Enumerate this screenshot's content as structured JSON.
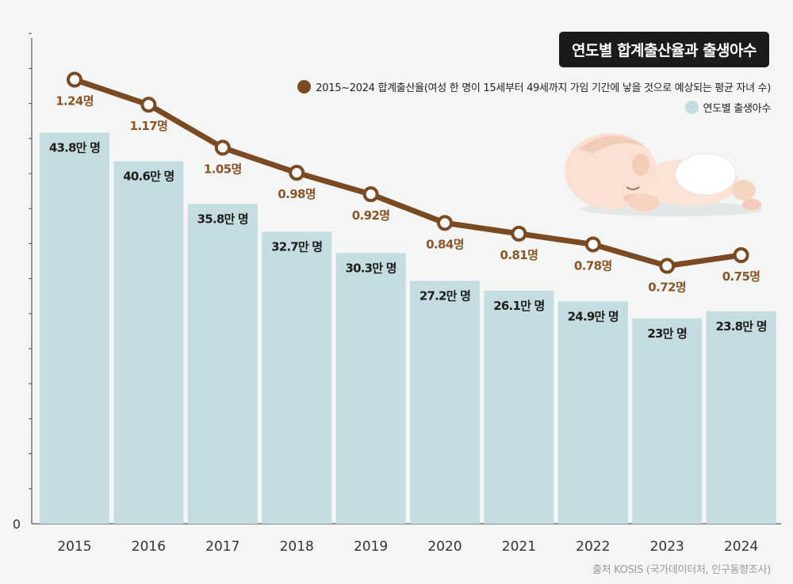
{
  "title": "연도별 합계출산율과 출생아수",
  "legend": {
    "line_label": "2015~2024 합계출산율(여성 한 명이 15세부터 49세까지 가임 기간에 낳을 것으로 예상되는 평균 자녀 수)",
    "bar_label": "연도별 출생아수"
  },
  "source": "출처 KOSIS (국가데이터처, 인구동향조사)",
  "colors": {
    "bar": "#c5dde0",
    "line": "#7a4a22",
    "line_label": "#8a5628",
    "background": "#f4f6f6",
    "axis": "#555555"
  },
  "chart_data": {
    "type": "bar+line",
    "title": "연도별 합계출산율과 출생아수",
    "categories": [
      "2015",
      "2016",
      "2017",
      "2018",
      "2019",
      "2020",
      "2021",
      "2022",
      "2023",
      "2024"
    ],
    "series": [
      {
        "name": "연도별 출생아수",
        "type": "bar",
        "unit": "만 명",
        "values": [
          43.8,
          40.6,
          35.8,
          32.7,
          30.3,
          27.2,
          26.1,
          24.9,
          23,
          23.8
        ],
        "labels": [
          "43.8만 명",
          "40.6만 명",
          "35.8만 명",
          "32.7만 명",
          "30.3만 명",
          "27.2만 명",
          "26.1만 명",
          "24.9만 명",
          "23만 명",
          "23.8만 명"
        ]
      },
      {
        "name": "2015~2024 합계출산율",
        "type": "line",
        "unit": "명",
        "values": [
          1.24,
          1.17,
          1.05,
          0.98,
          0.92,
          0.84,
          0.81,
          0.78,
          0.72,
          0.75
        ],
        "labels": [
          "1.24명",
          "1.17명",
          "1.05명",
          "0.98명",
          "0.92명",
          "0.84명",
          "0.81명",
          "0.78명",
          "0.72명",
          "0.75명"
        ]
      }
    ],
    "y_axis": {
      "zero_label": "0",
      "bar_range": [
        0,
        55
      ],
      "line_range": [
        0,
        1.4
      ]
    }
  }
}
